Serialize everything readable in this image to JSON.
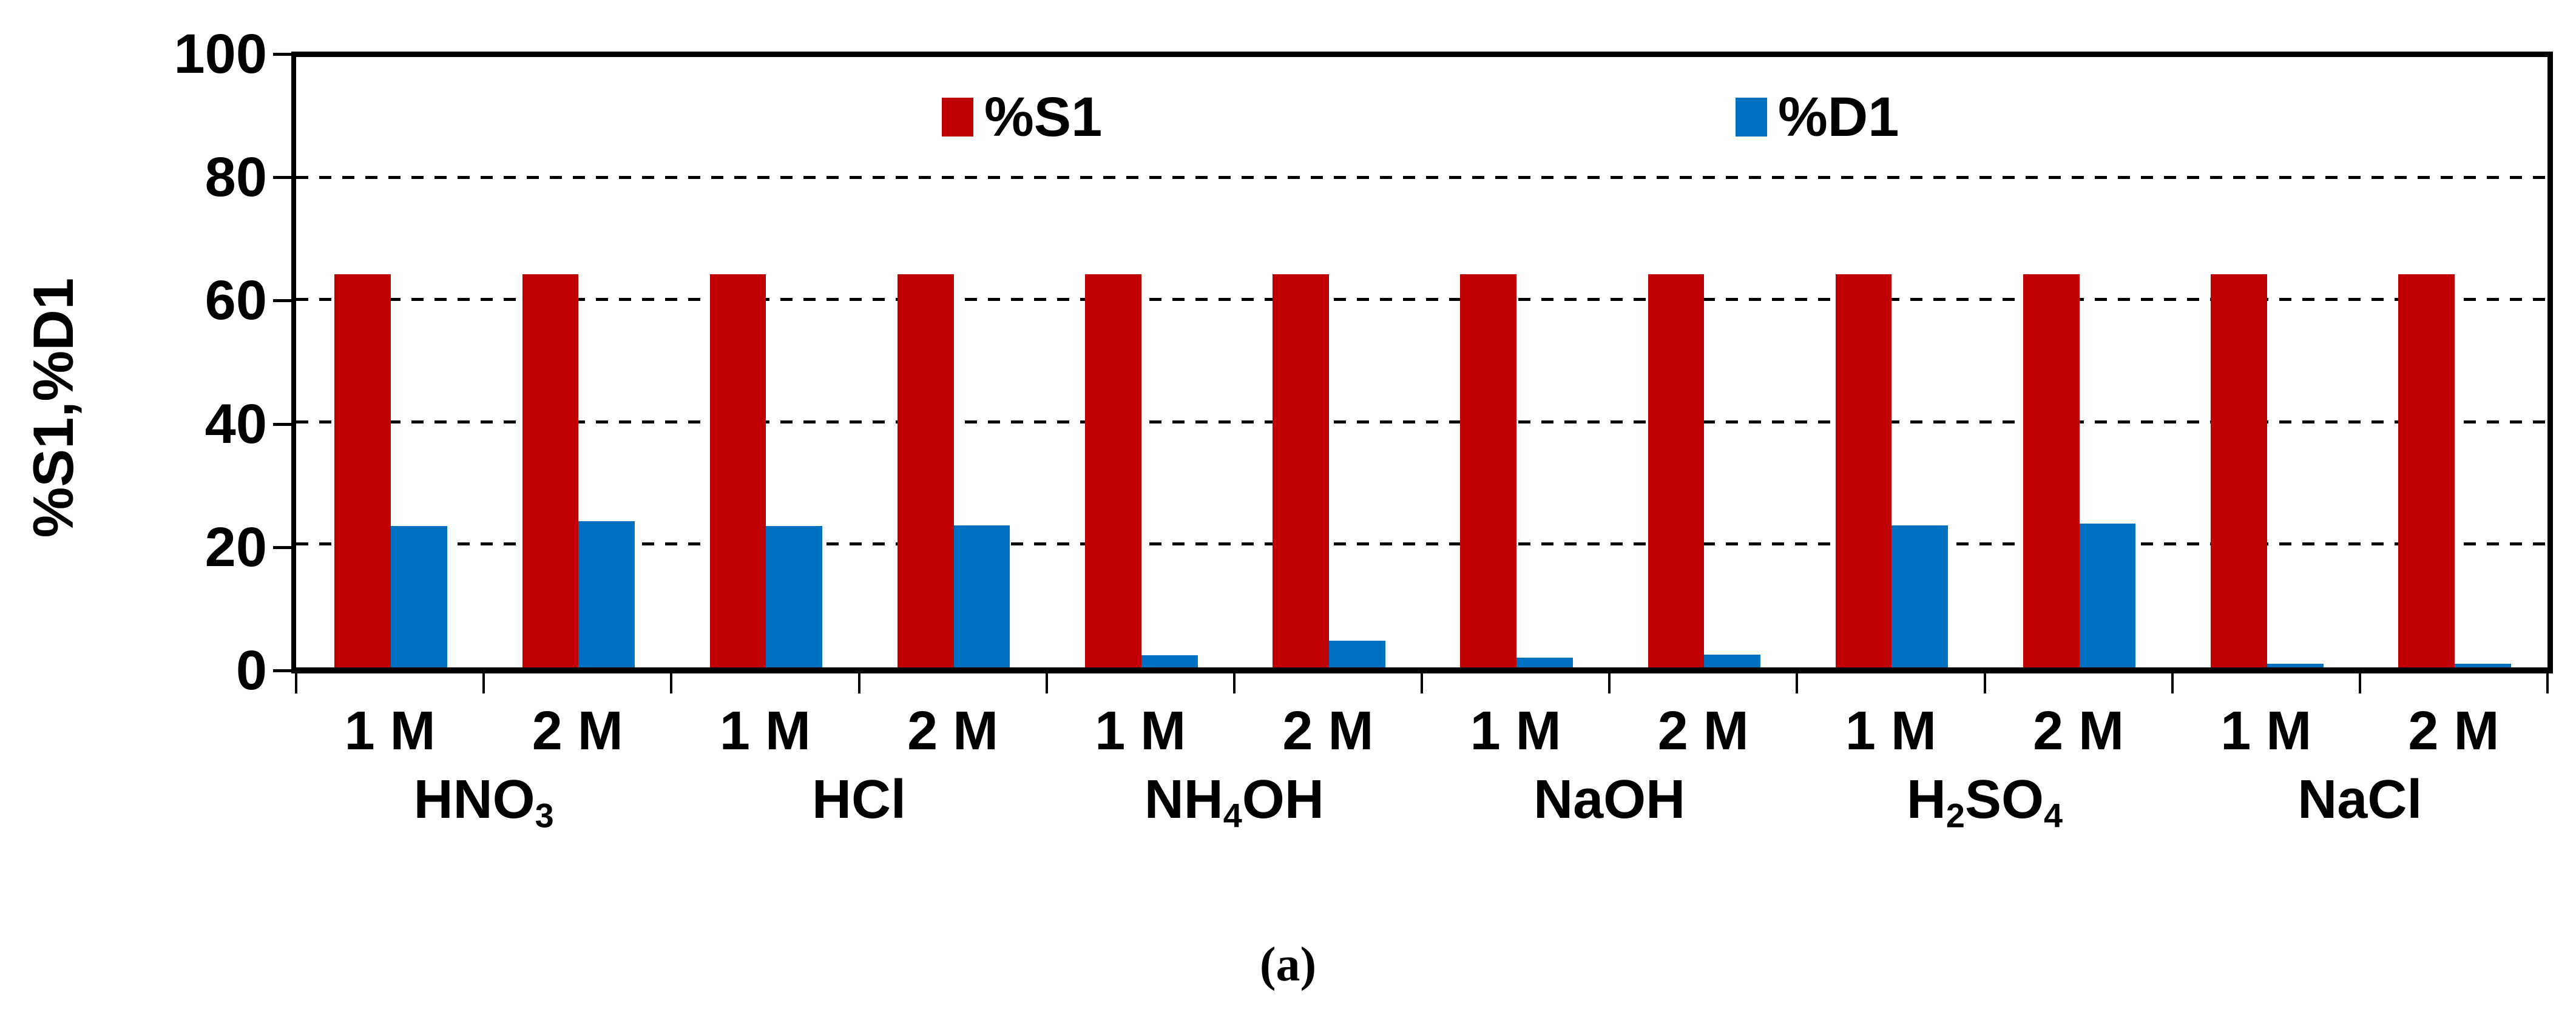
{
  "figure": {
    "caption": "(a)"
  },
  "chart_data": {
    "type": "bar",
    "title": "",
    "xlabel": "",
    "ylabel": "%S1,%D1",
    "ylim": [
      0,
      100
    ],
    "yticks": [
      0,
      20,
      40,
      60,
      80,
      100
    ],
    "grid": "horizontal-dashed",
    "legend_position": "top-inside",
    "series_names": [
      "%S1",
      "%D1"
    ],
    "colors": {
      "S1": "#C00000",
      "D1": "#0070C0"
    },
    "legend": [
      {
        "label": "%S1",
        "color": "#C00000"
      },
      {
        "label": "%D1",
        "color": "#0070C0"
      }
    ],
    "groups": [
      {
        "label": "HNO3",
        "label_parts": [
          [
            "HNO",
            false
          ],
          [
            "3",
            true
          ]
        ],
        "bars": [
          {
            "x": "1 M",
            "S1": 64.4,
            "D1": 23.2
          },
          {
            "x": "2 M",
            "S1": 64.4,
            "D1": 24.0
          }
        ]
      },
      {
        "label": "HCl",
        "label_parts": [
          [
            "HCl",
            false
          ]
        ],
        "bars": [
          {
            "x": "1 M",
            "S1": 64.4,
            "D1": 23.2
          },
          {
            "x": "2 M",
            "S1": 64.4,
            "D1": 23.3
          }
        ]
      },
      {
        "label": "NH4OH",
        "label_parts": [
          [
            "NH",
            false
          ],
          [
            "4",
            true
          ],
          [
            "OH",
            false
          ]
        ],
        "bars": [
          {
            "x": "1 M",
            "S1": 64.4,
            "D1": 2.0
          },
          {
            "x": "2 M",
            "S1": 64.4,
            "D1": 4.4
          }
        ]
      },
      {
        "label": "NaOH",
        "label_parts": [
          [
            "NaOH",
            false
          ]
        ],
        "bars": [
          {
            "x": "1 M",
            "S1": 64.4,
            "D1": 1.6
          },
          {
            "x": "2 M",
            "S1": 64.4,
            "D1": 2.1
          }
        ]
      },
      {
        "label": "H2SO4",
        "label_parts": [
          [
            "H",
            false
          ],
          [
            "2",
            true
          ],
          [
            "SO",
            false
          ],
          [
            "4",
            true
          ]
        ],
        "bars": [
          {
            "x": "1 M",
            "S1": 64.4,
            "D1": 23.3
          },
          {
            "x": "2 M",
            "S1": 64.4,
            "D1": 23.6
          }
        ]
      },
      {
        "label": "NaCl",
        "label_parts": [
          [
            "NaCl",
            false
          ]
        ],
        "bars": [
          {
            "x": "1 M",
            "S1": 64.4,
            "D1": 0.6
          },
          {
            "x": "2 M",
            "S1": 64.4,
            "D1": 0.6
          }
        ]
      }
    ]
  }
}
